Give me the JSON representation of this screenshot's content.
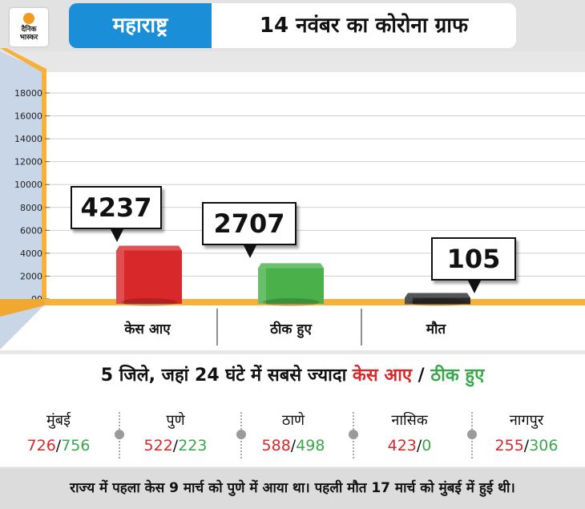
{
  "header": {
    "logo_line1": "दैनिक",
    "logo_line2": "भास्कर",
    "state": "महाराष्ट्र",
    "title": "14 नवंबर का कोरोना ग्राफ"
  },
  "chart_data": {
    "type": "bar",
    "categories": [
      "केस आए",
      "ठीक हुए",
      "मौत"
    ],
    "values": [
      4237,
      2707,
      105
    ],
    "value_labels": [
      "4237",
      "2707",
      "105"
    ],
    "colors": [
      "#d8282a",
      "#4ab04a",
      "#2a2a2a"
    ],
    "ylim": [
      0,
      18000
    ],
    "yticks": [
      0,
      2000,
      4000,
      6000,
      8000,
      10000,
      12000,
      14000,
      16000,
      18000
    ],
    "ytick_labels": [
      "00",
      "2000",
      "4000",
      "6000",
      "8000",
      "10000",
      "12000",
      "14000",
      "16000",
      "18000"
    ],
    "grid": true
  },
  "districts_title": {
    "prefix": "5 जिले, जहां 24 घंटे में सबसे ज्यादा ",
    "cases": "केस आए",
    "sep": " / ",
    "recovered": "ठीक हुए"
  },
  "districts": [
    {
      "name": "मुंबई",
      "cases": "726",
      "recovered": "756"
    },
    {
      "name": "पुणे",
      "cases": "522",
      "recovered": "223"
    },
    {
      "name": "ठाणे",
      "cases": "588",
      "recovered": "498"
    },
    {
      "name": "नासिक",
      "cases": "423",
      "recovered": "0"
    },
    {
      "name": "नागपुर",
      "cases": "255",
      "recovered": "306"
    }
  ],
  "slash": "/",
  "footer": "राज्य में पहला केस 9 मार्च को पुणे में आया था। पहली मौत 17 मार्च को मुंबई में हुई थी।"
}
